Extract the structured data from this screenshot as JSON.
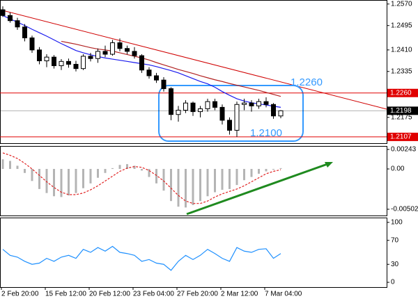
{
  "chart_data": [
    {
      "type": "candlestick",
      "open": [
        1.255,
        1.253,
        1.2512,
        1.249,
        1.2452,
        1.241,
        1.2372,
        1.2385,
        1.2355,
        1.237,
        1.236,
        1.2345,
        1.2388,
        1.238,
        1.2405,
        1.2395,
        1.2435,
        1.2415,
        1.2405,
        1.239,
        1.234,
        1.232,
        1.2305,
        1.2275,
        1.2185,
        1.22,
        1.2225,
        1.2195,
        1.2205,
        1.223,
        1.221,
        1.2165,
        1.213,
        1.222,
        1.2225,
        1.2215,
        1.223,
        1.222,
        1.218
      ],
      "high": [
        1.2562,
        1.254,
        1.2522,
        1.25,
        1.246,
        1.242,
        1.2395,
        1.2392,
        1.2378,
        1.238,
        1.2372,
        1.2395,
        1.24,
        1.2415,
        1.2425,
        1.2445,
        1.245,
        1.2425,
        1.242,
        1.2395,
        1.235,
        1.233,
        1.2315,
        1.228,
        1.2215,
        1.2235,
        1.223,
        1.2215,
        1.224,
        1.224,
        1.222,
        1.2175,
        1.223,
        1.224,
        1.2235,
        1.224,
        1.2245,
        1.2225,
        1.22
      ],
      "low": [
        1.2525,
        1.2505,
        1.248,
        1.244,
        1.24,
        1.236,
        1.235,
        1.2345,
        1.234,
        1.2348,
        1.2335,
        1.234,
        1.237,
        1.2365,
        1.2385,
        1.239,
        1.2405,
        1.2395,
        1.238,
        1.233,
        1.231,
        1.2295,
        1.2265,
        1.2165,
        1.216,
        1.219,
        1.218,
        1.2175,
        1.2195,
        1.22,
        1.215,
        1.2115,
        1.2107,
        1.22,
        1.2195,
        1.2205,
        1.221,
        1.217,
        1.2172
      ],
      "close": [
        1.253,
        1.2512,
        1.249,
        1.2452,
        1.241,
        1.2372,
        1.2385,
        1.2355,
        1.237,
        1.236,
        1.2345,
        1.2388,
        1.238,
        1.2405,
        1.2395,
        1.2435,
        1.2415,
        1.2405,
        1.239,
        1.234,
        1.232,
        1.2305,
        1.2275,
        1.2185,
        1.22,
        1.2225,
        1.2195,
        1.2205,
        1.223,
        1.221,
        1.2165,
        1.213,
        1.222,
        1.2225,
        1.2215,
        1.223,
        1.222,
        1.218,
        1.2198
      ],
      "lines": [
        {
          "color": "#1a1aee",
          "values": [
            1.253,
            1.2518,
            1.2507,
            1.2495,
            1.2482,
            1.247,
            1.2458,
            1.2445,
            1.2432,
            1.242,
            1.2408,
            1.24,
            1.2393,
            1.2387,
            1.2382,
            1.2378,
            1.2374,
            1.237,
            1.2366,
            1.2362,
            1.2358,
            1.2352,
            1.2345,
            1.2338,
            1.233,
            1.232,
            1.231,
            1.23,
            1.2292,
            1.228,
            1.2265,
            1.2252,
            1.224,
            1.2232,
            1.2226,
            1.2222,
            1.2218,
            1.2214,
            1.221
          ]
        },
        {
          "color": "#b22222",
          "values": [
            null,
            null,
            null,
            null,
            null,
            null,
            null,
            null,
            1.244,
            1.2435,
            1.243,
            1.2424,
            1.2418,
            1.2413,
            1.241,
            1.2406,
            1.24,
            1.2394,
            1.2388,
            1.2382,
            1.2375,
            1.2366,
            1.2358,
            1.235,
            1.2342,
            1.2335,
            1.2328,
            1.232,
            1.2313,
            1.2306,
            1.23,
            1.2293,
            1.2287,
            1.2281,
            1.2275,
            1.2269,
            1.2262,
            1.2255,
            1.2248
          ]
        }
      ],
      "levels": [
        {
          "value": 1.226,
          "label": "1.2260",
          "color": "#e00000"
        },
        {
          "value": 1.2198,
          "label": "1.2198",
          "color": "#000000"
        },
        {
          "value": 1.2107,
          "label": "1.2107",
          "color": "#e00000"
        }
      ],
      "annotations": [
        "1.2260",
        "1.2100"
      ],
      "ylim": [
        1.2085,
        1.2584
      ],
      "yticks": [
        {
          "value": 1.257,
          "label": "1.2570"
        },
        {
          "value": 1.2495,
          "label": "1.2495"
        },
        {
          "value": 1.241,
          "label": "1.2410"
        },
        {
          "value": 1.2335,
          "label": "1.2335"
        },
        {
          "value": 1.2175,
          "label": "1.2175"
        }
      ]
    },
    {
      "type": "bar",
      "color": "#b4b4b4",
      "values": [
        0.0012,
        0.001,
        0.0004,
        -0.0005,
        -0.0015,
        -0.0025,
        -0.003,
        -0.0034,
        -0.0035,
        -0.0033,
        -0.003,
        -0.0024,
        -0.0018,
        -0.0011,
        -0.0005,
        0.0001,
        0.0005,
        0.0006,
        0.0004,
        -0.0002,
        -0.001,
        -0.0018,
        -0.0027,
        -0.004,
        -0.0047,
        -0.0048,
        -0.0045,
        -0.004,
        -0.0034,
        -0.0029,
        -0.0026,
        -0.0025,
        -0.002,
        -0.0014,
        -0.001,
        -0.0006,
        -0.0003,
        -0.0001,
        0.0001
      ],
      "lines": [
        {
          "color": "#e02020",
          "dashed": true,
          "values": [
            0.002,
            0.0017,
            0.0013,
            0.0007,
            0.0,
            -0.0008,
            -0.0016,
            -0.0023,
            -0.0029,
            -0.0032,
            -0.0032,
            -0.003,
            -0.0026,
            -0.0021,
            -0.0015,
            -0.0009,
            -0.0003,
            0.0001,
            0.0003,
            0.0002,
            -0.0002,
            -0.0008,
            -0.0015,
            -0.0024,
            -0.0033,
            -0.004,
            -0.0043,
            -0.0043,
            -0.004,
            -0.0035,
            -0.0031,
            -0.0028,
            -0.0025,
            -0.0021,
            -0.0016,
            -0.0011,
            -0.0006,
            -0.0003,
            -0.0001
          ]
        }
      ],
      "ylim": [
        -0.0058,
        0.00286
      ],
      "yticks": [
        0.00243,
        {
          "value": 0,
          "label": "0.00"
        },
        -0.00502
      ]
    },
    {
      "type": "line",
      "color": "#1e90ff",
      "values": [
        55,
        45,
        42,
        35,
        30,
        32,
        40,
        35,
        42,
        45,
        40,
        55,
        50,
        58,
        52,
        60,
        50,
        48,
        45,
        35,
        38,
        32,
        30,
        20,
        35,
        45,
        38,
        45,
        55,
        48,
        40,
        35,
        58,
        52,
        50,
        55,
        56,
        40,
        48
      ],
      "ylim": [
        -8,
        108
      ],
      "yticks": [
        100,
        70,
        30,
        0
      ],
      "categories": [
        "2 Feb 20:00",
        null,
        null,
        null,
        null,
        null,
        "15 Feb 12:00",
        null,
        null,
        null,
        null,
        null,
        "20 Feb 12:00",
        null,
        null,
        null,
        null,
        null,
        "23 Feb 04:00",
        null,
        null,
        null,
        null,
        null,
        "27 Feb 20:00",
        null,
        null,
        null,
        null,
        null,
        "2 Mar 12:00",
        null,
        null,
        null,
        null,
        null,
        "7 Mar 04:00",
        null,
        null
      ]
    }
  ]
}
